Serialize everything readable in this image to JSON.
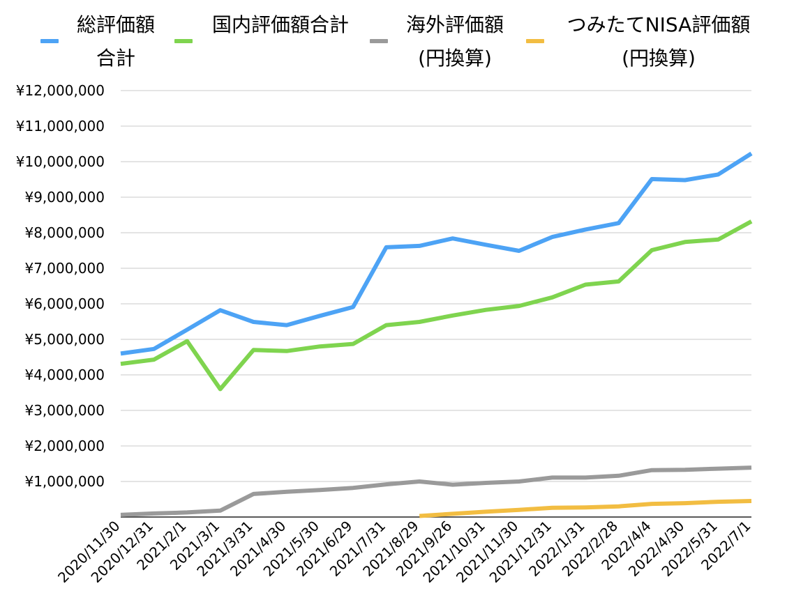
{
  "chart_data": {
    "type": "line",
    "categories": [
      "2020/11/30",
      "2020/12/31",
      "2021/2/1",
      "2021/3/1",
      "2021/3/31",
      "2021/4/30",
      "2021/5/30",
      "2021/6/29",
      "2021/7/31",
      "2021/8/29",
      "2021/9/26",
      "2021/10/31",
      "2021/11/30",
      "2021/12/31",
      "2022/1/31",
      "2022/2/28",
      "2022/4/4",
      "2022/4/30",
      "2022/5/31",
      "2022/7/1"
    ],
    "series": [
      {
        "name": "総評価額合計",
        "color": "#4da3f5",
        "values": [
          4600000,
          4730000,
          5270000,
          5820000,
          5490000,
          5400000,
          5660000,
          5910000,
          7590000,
          7630000,
          7840000,
          7660000,
          7490000,
          7880000,
          8090000,
          8270000,
          9510000,
          9480000,
          9640000,
          10230000
        ]
      },
      {
        "name": "国内評価額合計",
        "color": "#7fd44f",
        "values": [
          4310000,
          4430000,
          4950000,
          3600000,
          4700000,
          4670000,
          4800000,
          4870000,
          5400000,
          5490000,
          5670000,
          5830000,
          5940000,
          6180000,
          6540000,
          6630000,
          7510000,
          7740000,
          7810000,
          8320000
        ]
      },
      {
        "name": "海外評価額(円換算)",
        "color": "#9a9a9a",
        "values": [
          60000,
          100000,
          130000,
          180000,
          650000,
          710000,
          760000,
          820000,
          920000,
          1000000,
          910000,
          960000,
          1000000,
          1110000,
          1110000,
          1160000,
          1320000,
          1330000,
          1360000,
          1390000
        ]
      },
      {
        "name": "つみたてNISA評価額(円換算)",
        "color": "#f2bd42",
        "values": [
          null,
          null,
          null,
          null,
          null,
          null,
          null,
          null,
          null,
          30000,
          90000,
          150000,
          200000,
          260000,
          270000,
          300000,
          370000,
          390000,
          430000,
          450000
        ]
      }
    ],
    "yticks": [
      "¥1,000,000",
      "¥2,000,000",
      "¥3,000,000",
      "¥4,000,000",
      "¥5,000,000",
      "¥6,000,000",
      "¥7,000,000",
      "¥8,000,000",
      "¥9,000,000",
      "¥10,000,000",
      "¥11,000,000",
      "¥12,000,000"
    ],
    "ylim": [
      0,
      12000000
    ],
    "grid": true,
    "legend_position": "top"
  }
}
